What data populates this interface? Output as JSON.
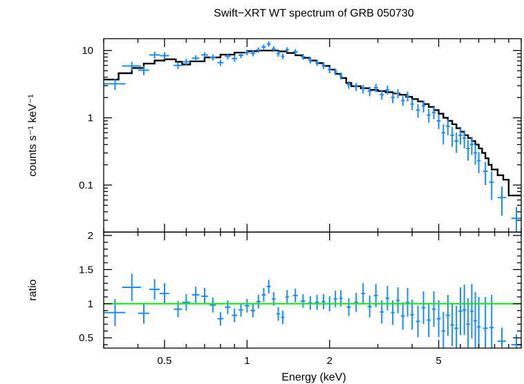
{
  "chart_data": {
    "type": "scatter",
    "title": "Swift−XRT WT spectrum of GRB 050730",
    "xlabel": "Energy (keV)",
    "x_scale": "log",
    "xlim": [
      0.3,
      10
    ],
    "x_ticks": [
      0.5,
      1,
      2,
      5
    ],
    "x_tick_labels": [
      "0.5",
      "1",
      "2",
      "5"
    ],
    "colors": {
      "data": "#1a8cff",
      "model": "#000000",
      "unity": "#00ee00",
      "axes": "#000000"
    },
    "panels": {
      "spectrum": {
        "ylabel": "counts s⁻¹ keV⁻¹",
        "y_scale": "log",
        "ylim": [
          0.02,
          15
        ],
        "y_ticks": [
          10,
          1,
          0.1
        ],
        "y_tick_labels": [
          "10",
          "1",
          "0.1"
        ],
        "data": [
          [
            0.33,
            3.2,
            0.03,
            0.6
          ],
          [
            0.38,
            5.9,
            0.03,
            0.9
          ],
          [
            0.42,
            5.1,
            0.02,
            0.8
          ],
          [
            0.46,
            8.6,
            0.02,
            1.0
          ],
          [
            0.5,
            8.4,
            0.02,
            1.0
          ],
          [
            0.56,
            6.0,
            0.02,
            0.7
          ],
          [
            0.6,
            6.8,
            0.02,
            0.7
          ],
          [
            0.65,
            7.7,
            0.02,
            0.8
          ],
          [
            0.7,
            8.6,
            0.02,
            0.8
          ],
          [
            0.75,
            7.9,
            0.02,
            0.8
          ],
          [
            0.8,
            6.6,
            0.02,
            0.7
          ],
          [
            0.85,
            8.2,
            0.02,
            0.8
          ],
          [
            0.9,
            7.6,
            0.02,
            0.8
          ],
          [
            0.95,
            8.5,
            0.02,
            0.8
          ],
          [
            1.0,
            9.4,
            0.02,
            0.9
          ],
          [
            1.05,
            9.1,
            0.02,
            0.9
          ],
          [
            1.1,
            10.2,
            0.02,
            0.9
          ],
          [
            1.15,
            11.3,
            0.02,
            1.0
          ],
          [
            1.2,
            12.5,
            0.02,
            1.1
          ],
          [
            1.25,
            10.6,
            0.02,
            1.0
          ],
          [
            1.3,
            9.0,
            0.02,
            0.9
          ],
          [
            1.35,
            8.2,
            0.02,
            0.8
          ],
          [
            1.4,
            10.3,
            0.02,
            0.9
          ],
          [
            1.5,
            9.6,
            0.03,
            0.9
          ],
          [
            1.6,
            8.1,
            0.03,
            0.8
          ],
          [
            1.7,
            7.2,
            0.03,
            0.8
          ],
          [
            1.8,
            6.6,
            0.03,
            0.7
          ],
          [
            1.9,
            6.0,
            0.03,
            0.7
          ],
          [
            2.0,
            5.2,
            0.03,
            0.6
          ],
          [
            2.1,
            4.8,
            0.03,
            0.5
          ],
          [
            2.2,
            4.2,
            0.03,
            0.5
          ],
          [
            2.35,
            3.1,
            0.04,
            0.4
          ],
          [
            2.5,
            2.9,
            0.04,
            0.4
          ],
          [
            2.65,
            2.7,
            0.04,
            0.4
          ],
          [
            2.8,
            2.5,
            0.05,
            0.4
          ],
          [
            2.95,
            2.8,
            0.05,
            0.4
          ],
          [
            3.1,
            2.2,
            0.05,
            0.35
          ],
          [
            3.25,
            2.6,
            0.05,
            0.4
          ],
          [
            3.4,
            2.0,
            0.05,
            0.35
          ],
          [
            3.55,
            2.3,
            0.05,
            0.35
          ],
          [
            3.7,
            1.8,
            0.06,
            0.3
          ],
          [
            3.85,
            2.1,
            0.06,
            0.35
          ],
          [
            4.0,
            1.6,
            0.06,
            0.3
          ],
          [
            4.2,
            1.3,
            0.07,
            0.3
          ],
          [
            4.4,
            1.5,
            0.07,
            0.3
          ],
          [
            4.6,
            1.1,
            0.07,
            0.25
          ],
          [
            4.8,
            1.2,
            0.08,
            0.25
          ],
          [
            5.0,
            0.9,
            0.08,
            0.22
          ],
          [
            5.2,
            0.6,
            0.08,
            0.2
          ],
          [
            5.4,
            0.75,
            0.09,
            0.2
          ],
          [
            5.6,
            0.55,
            0.09,
            0.18
          ],
          [
            5.8,
            0.45,
            0.1,
            0.15
          ],
          [
            6.0,
            0.55,
            0.1,
            0.15
          ],
          [
            6.2,
            0.5,
            0.1,
            0.15
          ],
          [
            6.4,
            0.35,
            0.1,
            0.12
          ],
          [
            6.6,
            0.4,
            0.1,
            0.12
          ],
          [
            6.8,
            0.3,
            0.1,
            0.1
          ],
          [
            7.0,
            0.23,
            0.1,
            0.08
          ],
          [
            7.4,
            0.16,
            0.15,
            0.06
          ],
          [
            7.8,
            0.11,
            0.15,
            0.05
          ],
          [
            8.5,
            0.065,
            0.3,
            0.03
          ],
          [
            9.6,
            0.032,
            0.4,
            0.015
          ]
        ],
        "model": [
          [
            0.3,
            3.7
          ],
          [
            0.34,
            4.6
          ],
          [
            0.38,
            5.5
          ],
          [
            0.42,
            6.4
          ],
          [
            0.46,
            7.1
          ],
          [
            0.5,
            7.4
          ],
          [
            0.55,
            6.8
          ],
          [
            0.58,
            6.2
          ],
          [
            0.62,
            6.9
          ],
          [
            0.7,
            7.9
          ],
          [
            0.8,
            8.7
          ],
          [
            0.9,
            9.3
          ],
          [
            1.0,
            9.8
          ],
          [
            1.1,
            10.0
          ],
          [
            1.2,
            10.0
          ],
          [
            1.3,
            9.7
          ],
          [
            1.4,
            9.2
          ],
          [
            1.5,
            8.5
          ],
          [
            1.6,
            7.8
          ],
          [
            1.7,
            7.1
          ],
          [
            1.8,
            6.5
          ],
          [
            1.9,
            5.9
          ],
          [
            2.0,
            5.2
          ],
          [
            2.1,
            4.5
          ],
          [
            2.2,
            3.9
          ],
          [
            2.3,
            3.3
          ],
          [
            2.4,
            2.95
          ],
          [
            2.6,
            2.75
          ],
          [
            2.8,
            2.6
          ],
          [
            3.0,
            2.5
          ],
          [
            3.2,
            2.4
          ],
          [
            3.4,
            2.3
          ],
          [
            3.6,
            2.2
          ],
          [
            3.8,
            2.05
          ],
          [
            4.0,
            1.9
          ],
          [
            4.2,
            1.75
          ],
          [
            4.4,
            1.6
          ],
          [
            4.6,
            1.45
          ],
          [
            4.8,
            1.3
          ],
          [
            5.0,
            1.15
          ],
          [
            5.2,
            1.0
          ],
          [
            5.4,
            0.9
          ],
          [
            5.6,
            0.8
          ],
          [
            5.8,
            0.7
          ],
          [
            6.0,
            0.62
          ],
          [
            6.2,
            0.55
          ],
          [
            6.4,
            0.5
          ],
          [
            6.6,
            0.45
          ],
          [
            6.8,
            0.4
          ],
          [
            7.0,
            0.35
          ],
          [
            7.2,
            0.3
          ],
          [
            7.4,
            0.25
          ],
          [
            7.6,
            0.2
          ],
          [
            7.8,
            0.17
          ],
          [
            8.2,
            0.14
          ],
          [
            8.6,
            0.12
          ],
          [
            9.0,
            0.07
          ],
          [
            10.0,
            0.07
          ]
        ]
      },
      "ratio": {
        "ylabel": "ratio",
        "y_scale": "linear",
        "ylim": [
          0.35,
          2.05
        ],
        "y_ticks": [
          0.5,
          1,
          1.5,
          2
        ],
        "y_tick_labels": [
          "0.5",
          "1",
          "1.5",
          "2"
        ],
        "reference_line": 1,
        "data": [
          [
            0.33,
            0.87,
            0.03,
            0.2
          ],
          [
            0.38,
            1.24,
            0.03,
            0.2
          ],
          [
            0.42,
            0.86,
            0.02,
            0.15
          ],
          [
            0.46,
            1.21,
            0.02,
            0.15
          ],
          [
            0.5,
            1.15,
            0.02,
            0.15
          ],
          [
            0.56,
            0.92,
            0.02,
            0.12
          ],
          [
            0.6,
            1.02,
            0.02,
            0.12
          ],
          [
            0.65,
            1.13,
            0.02,
            0.12
          ],
          [
            0.7,
            1.11,
            0.02,
            0.12
          ],
          [
            0.75,
            0.98,
            0.02,
            0.11
          ],
          [
            0.8,
            0.78,
            0.02,
            0.1
          ],
          [
            0.85,
            0.95,
            0.02,
            0.1
          ],
          [
            0.9,
            0.83,
            0.02,
            0.1
          ],
          [
            0.95,
            0.91,
            0.02,
            0.1
          ],
          [
            1.0,
            0.97,
            0.02,
            0.1
          ],
          [
            1.05,
            0.9,
            0.02,
            0.1
          ],
          [
            1.1,
            1.03,
            0.02,
            0.1
          ],
          [
            1.15,
            1.13,
            0.02,
            0.1
          ],
          [
            1.2,
            1.25,
            0.02,
            0.1
          ],
          [
            1.25,
            1.07,
            0.02,
            0.1
          ],
          [
            1.3,
            0.85,
            0.02,
            0.1
          ],
          [
            1.35,
            0.8,
            0.02,
            0.1
          ],
          [
            1.4,
            1.1,
            0.02,
            0.1
          ],
          [
            1.5,
            1.12,
            0.03,
            0.1
          ],
          [
            1.6,
            1.04,
            0.03,
            0.1
          ],
          [
            1.7,
            1.01,
            0.03,
            0.1
          ],
          [
            1.8,
            1.02,
            0.03,
            0.11
          ],
          [
            1.9,
            1.03,
            0.03,
            0.11
          ],
          [
            2.0,
            1.0,
            0.03,
            0.11
          ],
          [
            2.1,
            1.07,
            0.03,
            0.12
          ],
          [
            2.2,
            1.08,
            0.03,
            0.12
          ],
          [
            2.35,
            0.95,
            0.04,
            0.13
          ],
          [
            2.5,
            1.02,
            0.04,
            0.14
          ],
          [
            2.65,
            1.15,
            0.04,
            0.15
          ],
          [
            2.8,
            0.96,
            0.05,
            0.16
          ],
          [
            2.95,
            1.12,
            0.05,
            0.17
          ],
          [
            3.1,
            0.88,
            0.05,
            0.17
          ],
          [
            3.25,
            1.08,
            0.05,
            0.18
          ],
          [
            3.4,
            0.87,
            0.05,
            0.18
          ],
          [
            3.55,
            1.05,
            0.05,
            0.19
          ],
          [
            3.7,
            0.82,
            0.06,
            0.2
          ],
          [
            3.85,
            1.02,
            0.06,
            0.21
          ],
          [
            4.0,
            0.84,
            0.06,
            0.22
          ],
          [
            4.2,
            0.74,
            0.07,
            0.23
          ],
          [
            4.4,
            0.94,
            0.07,
            0.24
          ],
          [
            4.6,
            0.76,
            0.07,
            0.25
          ],
          [
            4.8,
            0.92,
            0.08,
            0.26
          ],
          [
            5.0,
            0.78,
            0.08,
            0.27
          ],
          [
            5.2,
            0.6,
            0.08,
            0.28
          ],
          [
            5.4,
            0.83,
            0.09,
            0.3
          ],
          [
            5.6,
            0.69,
            0.09,
            0.31
          ],
          [
            5.8,
            0.64,
            0.1,
            0.33
          ],
          [
            6.0,
            0.89,
            0.1,
            0.35
          ],
          [
            6.2,
            0.91,
            0.1,
            0.37
          ],
          [
            6.4,
            0.7,
            0.1,
            0.38
          ],
          [
            6.6,
            0.89,
            0.1,
            0.4
          ],
          [
            6.8,
            0.75,
            0.1,
            0.42
          ],
          [
            7.0,
            0.66,
            0.1,
            0.44
          ],
          [
            7.4,
            0.64,
            0.15,
            0.46
          ],
          [
            7.8,
            0.65,
            0.15,
            0.48
          ],
          [
            8.5,
            0.45,
            0.3,
            0.2
          ],
          [
            9.6,
            0.4,
            0.4,
            0.15
          ]
        ]
      }
    }
  }
}
